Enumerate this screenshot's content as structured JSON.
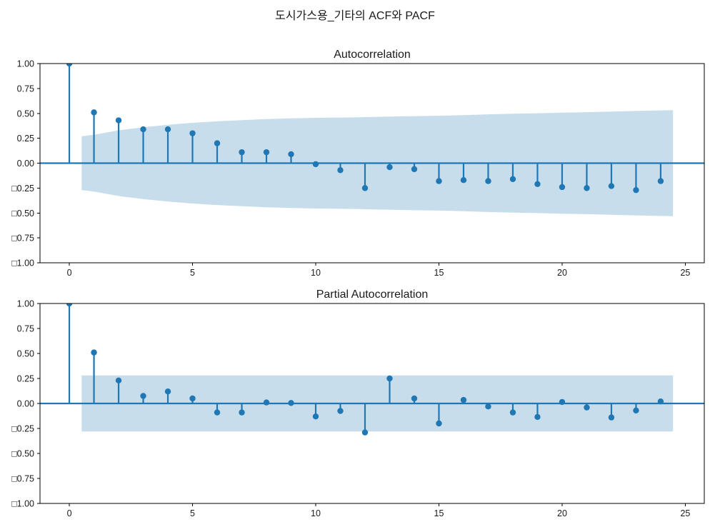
{
  "figure": {
    "title": "도시가스용_기타의 ACF와 PACF",
    "background": "#ffffff",
    "stem_color": "#1f77b4",
    "band_fill": "#c7ddec",
    "spine_color": "#000000",
    "text_color": "#1a1a1a"
  },
  "chart_data": [
    {
      "type": "stem",
      "title": "Autocorrelation",
      "x": [
        0,
        1,
        2,
        3,
        4,
        5,
        6,
        7,
        8,
        9,
        10,
        11,
        12,
        13,
        14,
        15,
        16,
        17,
        18,
        19,
        20,
        21,
        22,
        23,
        24
      ],
      "values": [
        1.0,
        0.51,
        0.43,
        0.34,
        0.34,
        0.3,
        0.2,
        0.11,
        0.11,
        0.09,
        -0.01,
        -0.07,
        -0.25,
        -0.04,
        -0.06,
        -0.18,
        -0.17,
        -0.18,
        -0.16,
        -0.21,
        -0.24,
        -0.25,
        -0.23,
        -0.27,
        -0.18
      ],
      "xlim": [
        -1.19,
        25.77
      ],
      "ylim": [
        -1,
        1
      ],
      "xtick_values": [
        0,
        5,
        10,
        15,
        20,
        25
      ],
      "xtick_labels": [
        "0",
        "5",
        "10",
        "15",
        "20",
        "25"
      ],
      "ytick_values": [
        1.0,
        0.75,
        0.5,
        0.25,
        0.0,
        -0.25,
        -0.5,
        -0.75,
        -1.0
      ],
      "ytick_labels": [
        "1.00",
        "0.75",
        "0.50",
        "0.25",
        "0.00",
        "□0.25",
        "□0.50",
        "□0.75",
        "□1.00"
      ],
      "grid": false,
      "conf_band": {
        "symmetric": true,
        "x": [
          0.5,
          1,
          2,
          3,
          4,
          5,
          6,
          7,
          8,
          9,
          10,
          11,
          12,
          13,
          14,
          15,
          16,
          17,
          18,
          19,
          20,
          21,
          22,
          23,
          24,
          24.5
        ],
        "upper": [
          0.27,
          0.285,
          0.33,
          0.36,
          0.385,
          0.405,
          0.42,
          0.432,
          0.443,
          0.45,
          0.455,
          0.458,
          0.462,
          0.468,
          0.472,
          0.476,
          0.482,
          0.49,
          0.496,
          0.501,
          0.507,
          0.512,
          0.518,
          0.524,
          0.53,
          0.532
        ]
      }
    },
    {
      "type": "stem",
      "title": "Partial Autocorrelation",
      "x": [
        0,
        1,
        2,
        3,
        4,
        5,
        6,
        7,
        8,
        9,
        10,
        11,
        12,
        13,
        14,
        15,
        16,
        17,
        18,
        19,
        20,
        21,
        22,
        23,
        24
      ],
      "values": [
        1.0,
        0.51,
        0.23,
        0.075,
        0.12,
        0.05,
        -0.09,
        -0.09,
        0.01,
        0.005,
        -0.13,
        -0.075,
        -0.29,
        0.25,
        0.05,
        -0.2,
        0.035,
        -0.03,
        -0.09,
        -0.135,
        0.015,
        -0.04,
        -0.14,
        -0.07,
        0.02
      ],
      "xlim": [
        -1.19,
        25.77
      ],
      "ylim": [
        -1,
        1
      ],
      "xtick_values": [
        0,
        5,
        10,
        15,
        20,
        25
      ],
      "xtick_labels": [
        "0",
        "5",
        "10",
        "15",
        "20",
        "25"
      ],
      "ytick_values": [
        1.0,
        0.75,
        0.5,
        0.25,
        0.0,
        -0.25,
        -0.5,
        -0.75,
        -1.0
      ],
      "ytick_labels": [
        "1.00",
        "0.75",
        "0.50",
        "0.25",
        "0.00",
        "□0.25",
        "□0.50",
        "□0.75",
        "□1.00"
      ],
      "grid": false,
      "conf_band": {
        "symmetric": true,
        "x": [
          0.5,
          24.5
        ],
        "upper": [
          0.28,
          0.28
        ]
      }
    }
  ]
}
